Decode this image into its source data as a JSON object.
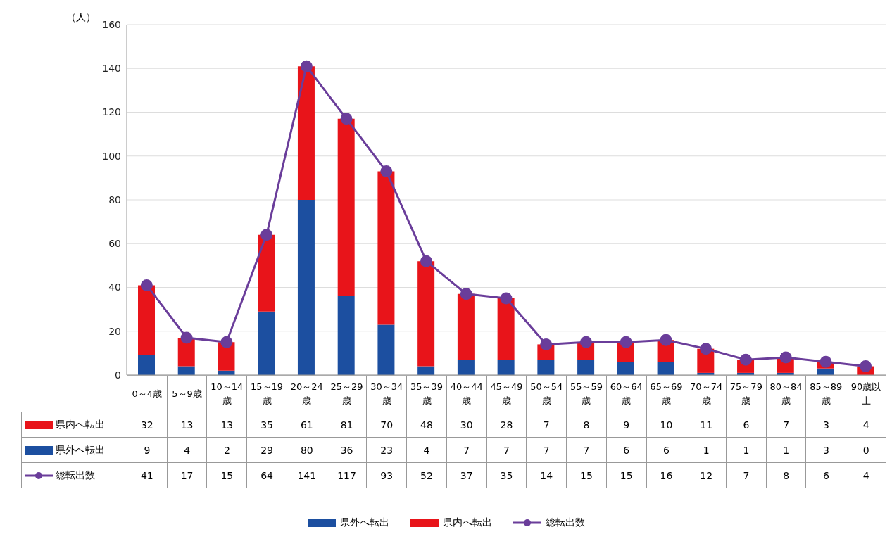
{
  "chart_data": {
    "type": "bar",
    "stacked": true,
    "ylabel": "（人）",
    "categories": [
      "0～4歳",
      "5～9歳",
      "10～14歳",
      "15～19歳",
      "20～24歳",
      "25～29歳",
      "30～34歳",
      "35～39歳",
      "40～44歳",
      "45～49歳",
      "50～54歳",
      "55～59歳",
      "60～64歳",
      "65～69歳",
      "70～74歳",
      "75～79歳",
      "80～84歳",
      "85～89歳",
      "90歳以上"
    ],
    "series": [
      {
        "name": "県外へ転出",
        "color": "#1c4fa0",
        "values": [
          9,
          4,
          2,
          29,
          80,
          36,
          23,
          4,
          7,
          7,
          7,
          7,
          6,
          6,
          1,
          1,
          1,
          3,
          0
        ]
      },
      {
        "name": "県内へ転出",
        "color": "#e8141a",
        "values": [
          32,
          13,
          13,
          35,
          61,
          81,
          70,
          48,
          30,
          28,
          7,
          8,
          9,
          10,
          11,
          6,
          7,
          3,
          4
        ]
      },
      {
        "name": "総転出数",
        "type": "line",
        "color": "#6a3d9a",
        "marker": "circle",
        "values": [
          41,
          17,
          15,
          64,
          141,
          117,
          93,
          52,
          37,
          35,
          14,
          15,
          15,
          16,
          12,
          7,
          8,
          6,
          4
        ]
      }
    ],
    "ylim": [
      0,
      160
    ],
    "yticks": [
      0,
      20,
      40,
      60,
      80,
      100,
      120,
      140,
      160
    ],
    "grid": "y",
    "legend": "bottom",
    "data_labels": true
  }
}
